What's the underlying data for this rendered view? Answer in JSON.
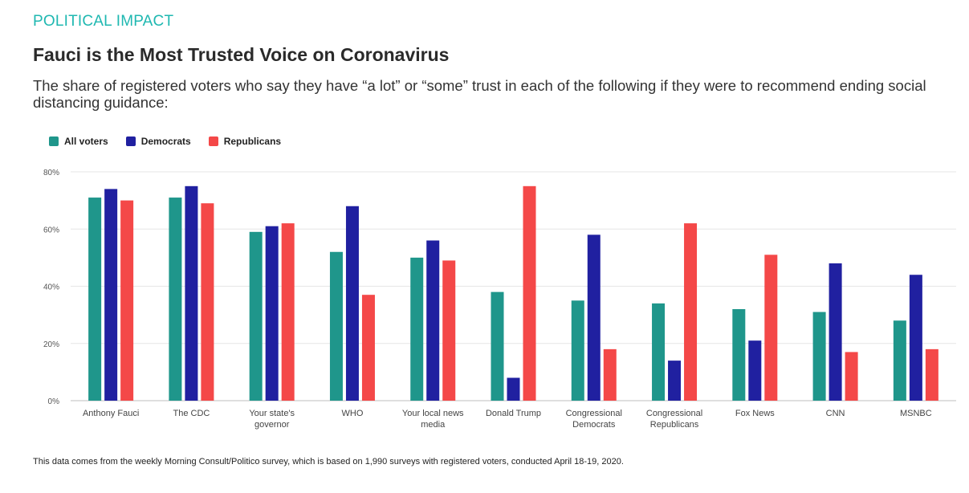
{
  "header": {
    "kicker": "POLITICAL IMPACT",
    "title": "Fauci is the Most Trusted Voice on Coronavirus",
    "subtitle": "The share of registered voters who say they have “a lot” or “some” trust in each of the following if they were to recommend ending social distancing guidance:"
  },
  "footnote": "This data comes from the weekly Morning Consult/Politico survey, which is based on 1,990 surveys with registered voters, conducted April 18-19, 2020.",
  "chart_data": {
    "type": "bar",
    "title": "",
    "xlabel": "",
    "ylabel": "",
    "ylim": [
      0,
      80
    ],
    "yticks": [
      0,
      20,
      40,
      60,
      80
    ],
    "ytick_labels": [
      "0%",
      "20%",
      "40%",
      "60%",
      "80%"
    ],
    "grid": true,
    "legend_position": "top-left",
    "categories": [
      [
        "Anthony Fauci"
      ],
      [
        "The CDC"
      ],
      [
        "Your state's",
        "governor"
      ],
      [
        "WHO"
      ],
      [
        "Your local news",
        "media"
      ],
      [
        "Donald Trump"
      ],
      [
        "Congressional",
        "Democrats"
      ],
      [
        "Congressional",
        "Republicans"
      ],
      [
        "Fox News"
      ],
      [
        "CNN"
      ],
      [
        "MSNBC"
      ]
    ],
    "series": [
      {
        "name": "All voters",
        "color": "#1f968b",
        "values": [
          71,
          71,
          59,
          52,
          50,
          38,
          35,
          34,
          32,
          31,
          28
        ]
      },
      {
        "name": "Democrats",
        "color": "#2020a0",
        "values": [
          74,
          75,
          61,
          68,
          56,
          8,
          58,
          14,
          21,
          48,
          44
        ]
      },
      {
        "name": "Republicans",
        "color": "#f44848",
        "values": [
          70,
          69,
          62,
          37,
          49,
          75,
          18,
          62,
          51,
          17,
          18
        ]
      }
    ]
  }
}
